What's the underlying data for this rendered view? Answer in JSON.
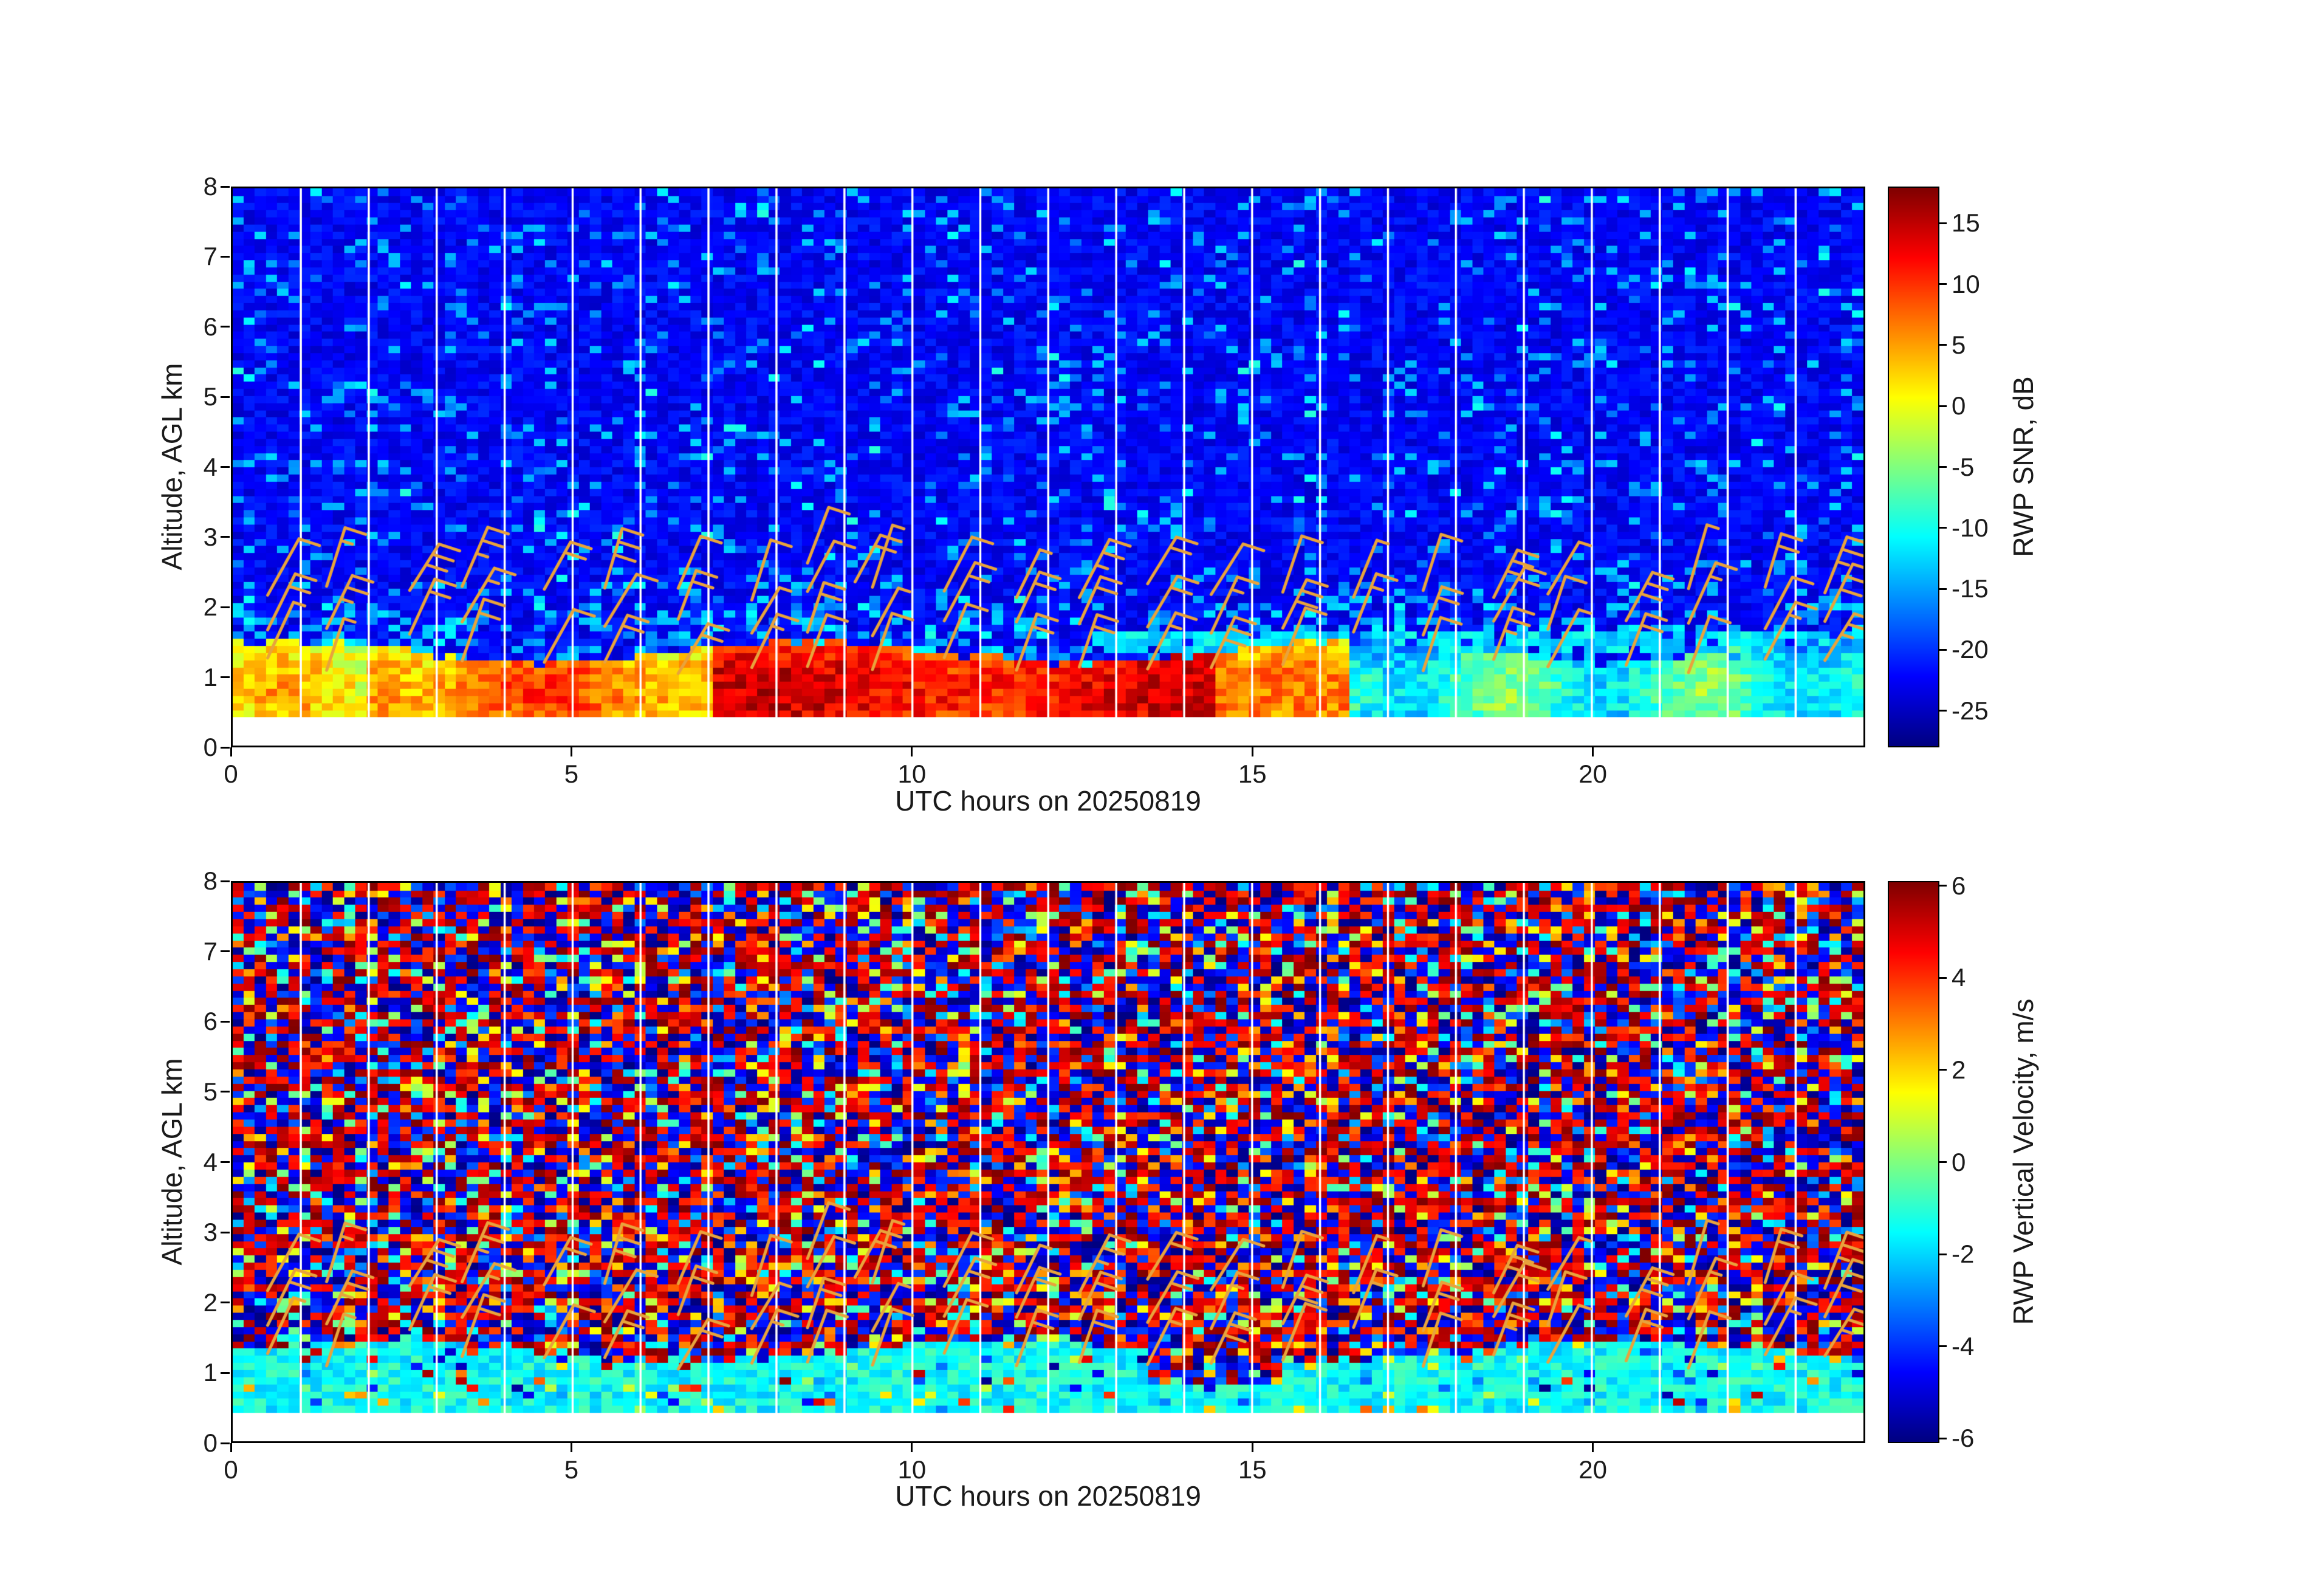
{
  "figure": {
    "background": "#ffffff"
  },
  "chart_data": [
    {
      "type": "heatmap",
      "title": "",
      "xlabel": "UTC hours on 20250819",
      "ylabel": "Altitude, AGL km",
      "x_range": [
        0,
        24
      ],
      "x_ticks": [
        0,
        5,
        10,
        15,
        20
      ],
      "y_range": [
        0,
        8
      ],
      "y_ticks": [
        0,
        1,
        2,
        3,
        4,
        5,
        6,
        7,
        8
      ],
      "colormap": "jet",
      "colorbar_label": "RWP SNR, dB",
      "colorbar_ticks": [
        15,
        10,
        5,
        0,
        -5,
        -10,
        -15,
        -20,
        -25
      ],
      "colorbar_range": [
        -28,
        18
      ],
      "grid": {
        "n_time": 146,
        "n_alt": 78
      },
      "features": {
        "no_data_below_km": 0.38,
        "background_snr_db": -22.5,
        "background_noise_db": 4.5,
        "speckle_snr_db": -15,
        "boundary_layer": {
          "top_km": 1.35,
          "peak_alt_km": 0.8,
          "snr_peak_db": 13,
          "strong_hours": [
            7,
            14.5
          ],
          "moderate_db": 7,
          "weak_db": -8
        },
        "elevated_cyan_layer": {
          "alt_km": [
            1.3,
            1.6
          ],
          "hours": [
            13,
            24
          ],
          "snr_db": -12
        },
        "hourly_gaps": true
      },
      "overlay_wind_barbs": {
        "color": "#E8A33C",
        "hours_step": 1,
        "alt_levels_km": [
          1.15,
          1.7,
          2.2
        ],
        "extra_high_barbs_hour": 8
      }
    },
    {
      "type": "heatmap",
      "title": "",
      "xlabel": "UTC hours on 20250819",
      "ylabel": "Altitude, AGL km",
      "x_range": [
        0,
        24
      ],
      "x_ticks": [
        0,
        5,
        10,
        15,
        20
      ],
      "y_range": [
        0,
        8
      ],
      "y_ticks": [
        0,
        1,
        2,
        3,
        4,
        5,
        6,
        7,
        8
      ],
      "colormap": "jet",
      "colorbar_label": "RWP Vertical Velocity, m/s",
      "colorbar_ticks": [
        6,
        4,
        2,
        0,
        -2,
        -4,
        -6
      ],
      "colorbar_range": [
        -6.1,
        6.1
      ],
      "grid": {
        "n_time": 146,
        "n_alt": 78
      },
      "features": {
        "no_data_below_km": 0.38,
        "noise_field": "saturated +/-6 m/s speckle above boundary layer",
        "boundary_layer": {
          "top_km": 1.3,
          "w_mean_ms": -1.4,
          "w_noise_ms": 0.9,
          "speckle_fraction": 0.13
        },
        "disturbed_hours": [
          13.5,
          15.5
        ],
        "hourly_gaps": true
      },
      "overlay_wind_barbs": {
        "color": "#E8A33C",
        "hours_step": 1,
        "alt_levels_km": [
          1.15,
          1.7,
          2.2
        ],
        "extra_high_barbs_hour": 8
      }
    }
  ]
}
